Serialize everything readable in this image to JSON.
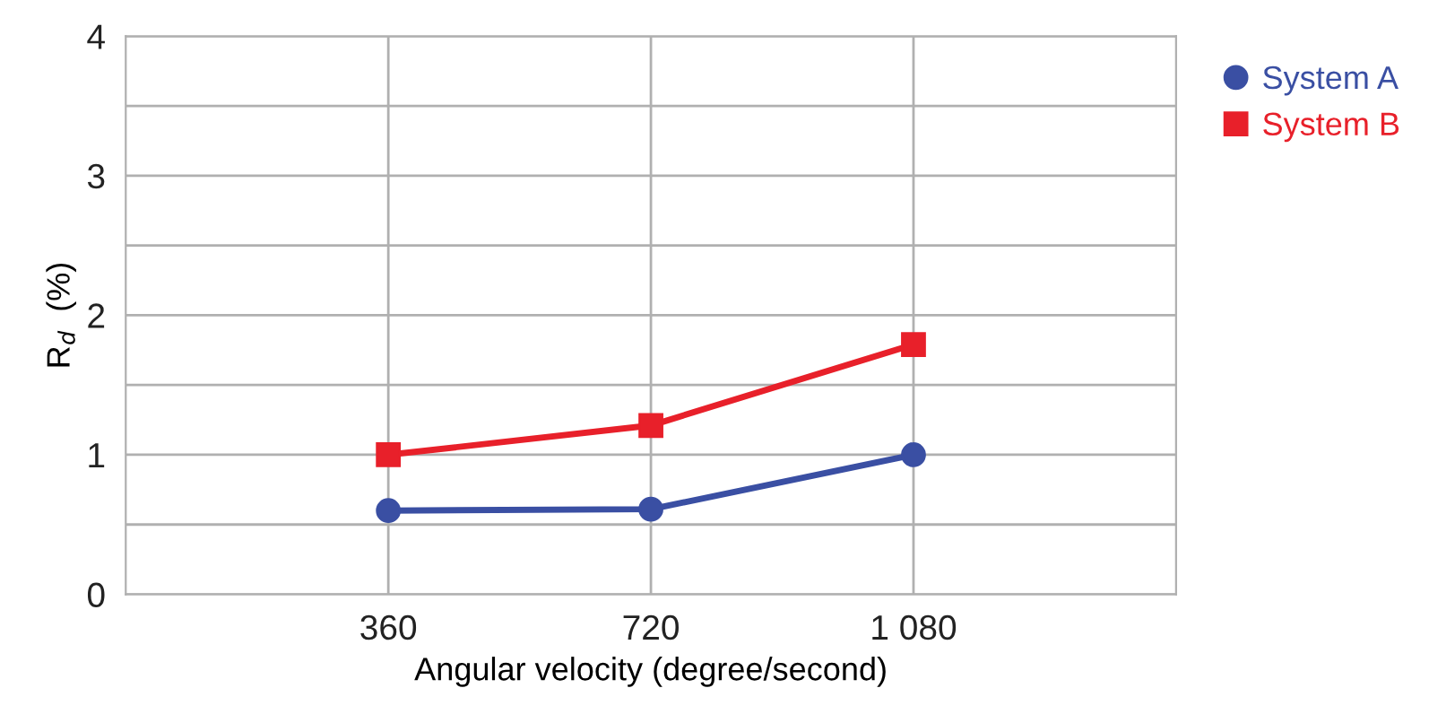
{
  "chart_data": {
    "type": "line",
    "xlabel": "Angular velocity (degree/second)",
    "ylabel": "R$_{d}$  (%)",
    "x": [
      360,
      720,
      1080
    ],
    "series": [
      {
        "name": "System A",
        "color": "#3a4fa3",
        "marker": "circle",
        "values": [
          0.6,
          0.61,
          1.0
        ]
      },
      {
        "name": "System B",
        "color": "#e8202a",
        "marker": "square",
        "values": [
          1.0,
          1.21,
          1.79
        ]
      }
    ],
    "xlim": [
      0,
      1440
    ],
    "xticks": [
      360,
      720,
      {
        "value": 1080,
        "label": "1 080"
      }
    ],
    "ylim": [
      0,
      4
    ],
    "yticks": [
      0,
      {
        "value": 0.5,
        "label": null
      },
      1,
      {
        "value": 1.5,
        "label": null
      },
      2,
      {
        "value": 2.5,
        "label": null
      },
      3,
      {
        "value": 3.5,
        "label": null
      },
      4
    ],
    "grid": true,
    "legend": "top right",
    "line_style": "solid"
  }
}
